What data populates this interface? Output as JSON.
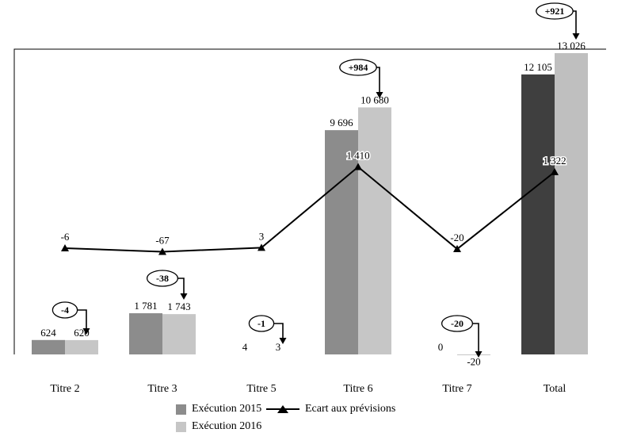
{
  "chart_data": {
    "type": "bar",
    "title": "",
    "categories": [
      "Titre 2",
      "Titre 3",
      "Titre 5",
      "Titre 6",
      "Titre 7",
      "Total"
    ],
    "series": [
      {
        "name": "Exécution 2015",
        "type": "bar",
        "values": [
          624,
          1781,
          4,
          9696,
          0,
          12105
        ],
        "labels": [
          "624",
          "1 781",
          "4",
          "9 696",
          "0",
          "12 105"
        ],
        "colors": [
          "#8c8c8c",
          "#8c8c8c",
          "#8c8c8c",
          "#8c8c8c",
          "#8c8c8c",
          "#3f3f3f"
        ]
      },
      {
        "name": "Exécution 2016",
        "type": "bar",
        "values": [
          620,
          1743,
          3,
          10680,
          -20,
          13026
        ],
        "labels": [
          "620",
          "1 743",
          "3",
          "10 680",
          "-20",
          "13 026"
        ],
        "colors": [
          "#c6c6c6",
          "#c6c6c6",
          "#c6c6c6",
          "#c6c6c6",
          "#c6c6c6",
          "#bfbfbf"
        ]
      },
      {
        "name": "Ecart aux prévisions",
        "type": "line",
        "values": [
          -6,
          -67,
          3,
          1410,
          -20,
          1322
        ],
        "labels": [
          "-6",
          "-67",
          "3",
          "1 410",
          "-20",
          "1 322"
        ],
        "color": "#000000"
      }
    ],
    "annotations": [
      {
        "category": "Titre 2",
        "label": "-4"
      },
      {
        "category": "Titre 3",
        "label": "-38"
      },
      {
        "category": "Titre 5",
        "label": "-1"
      },
      {
        "category": "Titre 6",
        "label": "+984"
      },
      {
        "category": "Titre 7",
        "label": "-20"
      },
      {
        "category": "Total",
        "label": "+921"
      }
    ],
    "axes": {
      "value_axis_labels_visible": false,
      "bar_axis_min": 0,
      "line_on_secondary_axis": true,
      "grid": false
    },
    "legend_position": "bottom"
  }
}
